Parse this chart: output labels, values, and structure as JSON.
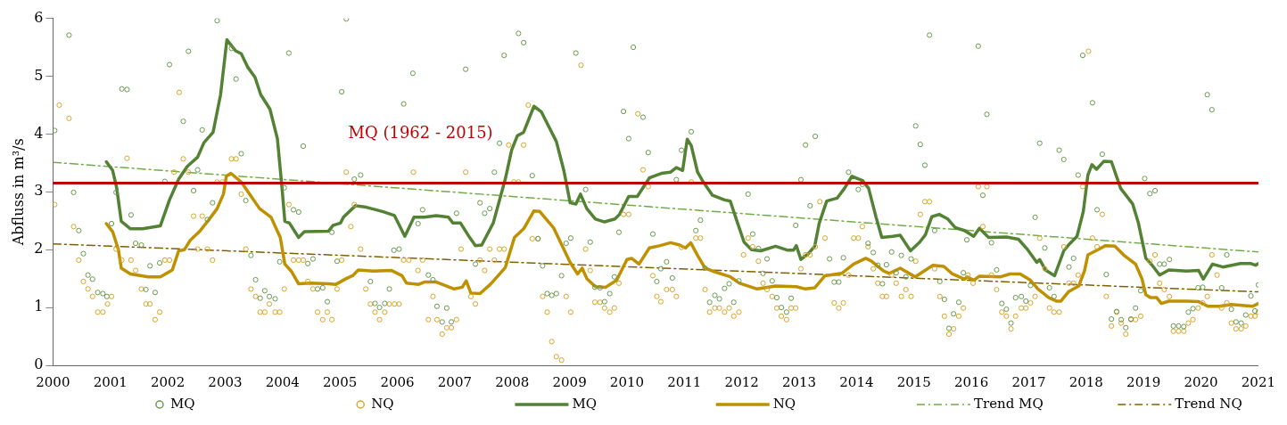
{
  "chart_data": {
    "type": "line",
    "ylabel": "Abfluss in m³/s",
    "xlim": [
      2000,
      2021
    ],
    "xticks": [
      2000,
      2001,
      2002,
      2003,
      2004,
      2005,
      2006,
      2007,
      2008,
      2009,
      2010,
      2011,
      2012,
      2013,
      2014,
      2015,
      2016,
      2017,
      2018,
      2019,
      2020,
      2021
    ],
    "ylim": [
      0,
      6
    ],
    "yticks": [
      0,
      1,
      2,
      3,
      4,
      5,
      6
    ],
    "grid": false,
    "legend": "bottom",
    "ref_lines": [
      {
        "axis": "y",
        "value": 3.15,
        "label": "MQ (1962 - 2015)",
        "color": "#c00000"
      }
    ],
    "series": [
      {
        "name": "MQ",
        "type": "scatter",
        "marker": "circle",
        "color": "#6a9a50",
        "x": [
          2000.03,
          2000.28,
          2000.36,
          2000.45,
          2000.53,
          2000.61,
          2000.69,
          2000.78,
          2000.87,
          2000.94,
          2001.02,
          2001.1,
          2001.2,
          2001.29,
          2001.36,
          2001.44,
          2001.54,
          2001.62,
          2001.69,
          2001.78,
          2001.86,
          2001.95,
          2002.03,
          2002.27,
          2002.36,
          2002.45,
          2002.52,
          2002.6,
          2002.69,
          2002.78,
          2002.86,
          2003.11,
          2003.19,
          2003.28,
          2003.36,
          2003.45,
          2003.53,
          2003.61,
          2003.69,
          2003.77,
          2003.87,
          2003.95,
          2004.03,
          2004.11,
          2004.19,
          2004.28,
          2004.36,
          2004.44,
          2004.53,
          2004.61,
          2004.7,
          2004.78,
          2004.86,
          2004.95,
          2005.03,
          2005.11,
          2005.25,
          2005.36,
          2005.53,
          2005.61,
          2005.69,
          2005.78,
          2005.86,
          2005.94,
          2006.03,
          2006.11,
          2006.27,
          2006.36,
          2006.44,
          2006.54,
          2006.62,
          2006.69,
          2006.78,
          2006.86,
          2006.94,
          2007.03,
          2007.19,
          2007.36,
          2007.44,
          2007.52,
          2007.61,
          2007.69,
          2007.78,
          2007.86,
          2008.11,
          2008.2,
          2008.35,
          2008.45,
          2008.53,
          2008.61,
          2008.69,
          2008.77,
          2008.86,
          2008.94,
          2009.02,
          2009.11,
          2009.28,
          2009.36,
          2009.44,
          2009.53,
          2009.61,
          2009.7,
          2009.78,
          2009.86,
          2009.94,
          2010.03,
          2010.11,
          2010.28,
          2010.37,
          2010.45,
          2010.52,
          2010.59,
          2010.69,
          2010.79,
          2010.86,
          2010.95,
          2011.12,
          2011.2,
          2011.28,
          2011.36,
          2011.44,
          2011.53,
          2011.61,
          2011.7,
          2011.78,
          2011.86,
          2011.95,
          2012.11,
          2012.19,
          2012.29,
          2012.37,
          2012.44,
          2012.53,
          2012.61,
          2012.69,
          2012.78,
          2012.86,
          2012.94,
          2013.03,
          2013.11,
          2013.19,
          2013.28,
          2013.53,
          2013.61,
          2013.69,
          2013.77,
          2013.86,
          2014.03,
          2014.1,
          2014.2,
          2014.29,
          2014.37,
          2014.45,
          2014.52,
          2014.61,
          2014.69,
          2014.78,
          2014.86,
          2014.95,
          2015.03,
          2015.11,
          2015.19,
          2015.27,
          2015.36,
          2015.45,
          2015.53,
          2015.61,
          2015.69,
          2015.78,
          2015.86,
          2015.92,
          2016.12,
          2016.2,
          2016.27,
          2016.35,
          2016.44,
          2016.53,
          2016.61,
          2016.69,
          2016.77,
          2016.87,
          2016.95,
          2017.03,
          2017.11,
          2017.19,
          2017.28,
          2017.36,
          2017.44,
          2017.53,
          2017.61,
          2017.7,
          2017.78,
          2017.86,
          2017.94,
          2018.11,
          2018.19,
          2018.28,
          2018.35,
          2018.44,
          2018.53,
          2018.61,
          2018.69,
          2018.78,
          2018.86,
          2018.95,
          2019.02,
          2019.11,
          2019.2,
          2019.28,
          2019.36,
          2019.45,
          2019.52,
          2019.61,
          2019.7,
          2019.78,
          2019.86,
          2019.95,
          2020.03,
          2020.11,
          2020.19,
          2020.36,
          2020.45,
          2020.53,
          2020.61,
          2020.7,
          2020.78,
          2020.87,
          2020.94,
          2021.0
        ],
        "values": [
          4.06,
          5.71,
          2.99,
          2.33,
          1.93,
          1.56,
          1.49,
          1.26,
          1.24,
          1.19,
          2.45,
          2.99,
          4.78,
          4.77,
          2.6,
          2.11,
          2.08,
          1.31,
          1.72,
          1.26,
          1.77,
          3.18,
          5.2,
          4.22,
          5.43,
          3.02,
          3.38,
          4.07,
          2.52,
          2.81,
          5.96,
          5.48,
          4.95,
          3.66,
          2.85,
          1.9,
          1.48,
          1.16,
          1.29,
          1.19,
          1.15,
          1.79,
          3.07,
          5.4,
          2.69,
          2.65,
          3.79,
          1.76,
          1.84,
          1.32,
          1.34,
          1.1,
          2.3,
          1.8,
          4.73,
          5.99,
          3.22,
          3.29,
          1.45,
          1.07,
          1.0,
          1.07,
          1.32,
          1.99,
          2.01,
          4.52,
          5.05,
          2.45,
          2.69,
          1.56,
          1.48,
          1.02,
          0.75,
          0.99,
          0.75,
          2.63,
          5.12,
          1.75,
          2.81,
          2.63,
          2.71,
          3.34,
          3.84,
          5.36,
          5.74,
          5.58,
          3.28,
          2.19,
          1.72,
          1.24,
          1.21,
          1.24,
          1.55,
          2.11,
          2.2,
          5.4,
          3.04,
          2.13,
          1.35,
          1.34,
          1.1,
          1.24,
          1.53,
          2.3,
          4.39,
          3.92,
          5.5,
          4.29,
          3.68,
          2.27,
          1.45,
          1.67,
          1.79,
          1.51,
          3.21,
          3.72,
          4.04,
          2.33,
          2.51,
          1.68,
          1.09,
          1.21,
          1.15,
          1.33,
          1.41,
          1.09,
          1.46,
          2.96,
          2.27,
          2.02,
          1.59,
          1.84,
          1.46,
          1.17,
          1.0,
          0.92,
          1.16,
          2.42,
          3.21,
          3.81,
          2.76,
          3.96,
          1.84,
          1.44,
          1.44,
          1.86,
          3.34,
          3.04,
          3.13,
          2.11,
          1.95,
          1.73,
          1.41,
          1.74,
          1.96,
          1.6,
          1.9,
          1.53,
          1.84,
          4.14,
          3.82,
          3.46,
          5.71,
          2.33,
          1.45,
          1.14,
          0.64,
          0.89,
          1.09,
          1.6,
          2.17,
          5.52,
          2.94,
          4.34,
          2.12,
          1.65,
          1.07,
          0.97,
          0.73,
          1.17,
          1.19,
          1.11,
          1.38,
          2.56,
          3.84,
          2.03,
          1.34,
          1.19,
          3.72,
          3.56,
          1.7,
          1.85,
          3.29,
          5.36,
          4.54,
          2.69,
          3.65,
          1.57,
          0.8,
          0.93,
          0.79,
          0.65,
          0.8,
          0.99,
          1.29,
          3.23,
          2.97,
          3.02,
          1.75,
          1.75,
          1.83,
          0.68,
          0.68,
          0.67,
          0.92,
          0.98,
          1.34,
          1.35,
          4.68,
          4.42,
          1.34,
          1.91,
          0.97,
          0.75,
          0.73,
          0.87,
          1.2,
          0.94,
          1.39
        ]
      },
      {
        "name": "NQ",
        "type": "scatter",
        "marker": "circle",
        "color": "#d9a62a",
        "x": [
          2000.03,
          2000.11,
          2000.28,
          2000.36,
          2000.45,
          2000.53,
          2000.61,
          2000.69,
          2000.78,
          2000.87,
          2000.95,
          2001.02,
          2001.1,
          2001.2,
          2001.29,
          2001.36,
          2001.44,
          2001.54,
          2001.62,
          2001.69,
          2001.78,
          2001.86,
          2001.95,
          2002.03,
          2002.11,
          2002.2,
          2002.27,
          2002.36,
          2002.45,
          2002.52,
          2002.6,
          2002.69,
          2002.78,
          2002.86,
          2002.95,
          2003.11,
          2003.19,
          2003.28,
          2003.36,
          2003.45,
          2003.53,
          2003.61,
          2003.69,
          2003.77,
          2003.87,
          2003.95,
          2004.03,
          2004.11,
          2004.19,
          2004.28,
          2004.36,
          2004.44,
          2004.53,
          2004.61,
          2004.7,
          2004.78,
          2004.86,
          2004.95,
          2005.03,
          2005.11,
          2005.19,
          2005.25,
          2005.36,
          2005.45,
          2005.53,
          2005.61,
          2005.69,
          2005.78,
          2005.86,
          2005.95,
          2006.03,
          2006.11,
          2006.2,
          2006.28,
          2006.36,
          2006.44,
          2006.54,
          2006.62,
          2006.69,
          2006.78,
          2006.86,
          2006.94,
          2007.03,
          2007.11,
          2007.19,
          2007.28,
          2007.36,
          2007.44,
          2007.52,
          2007.61,
          2007.69,
          2007.78,
          2007.86,
          2007.94,
          2008.03,
          2008.11,
          2008.2,
          2008.28,
          2008.35,
          2008.45,
          2008.53,
          2008.61,
          2008.69,
          2008.77,
          2008.86,
          2008.94,
          2009.02,
          2009.2,
          2009.28,
          2009.36,
          2009.44,
          2009.53,
          2009.61,
          2009.7,
          2009.78,
          2009.86,
          2009.94,
          2010.03,
          2010.19,
          2010.28,
          2010.37,
          2010.45,
          2010.52,
          2010.59,
          2010.69,
          2010.79,
          2010.86,
          2010.95,
          2011.12,
          2011.2,
          2011.28,
          2011.36,
          2011.44,
          2011.53,
          2011.61,
          2011.7,
          2011.78,
          2011.86,
          2011.95,
          2012.03,
          2012.11,
          2012.19,
          2012.29,
          2012.37,
          2012.44,
          2012.53,
          2012.61,
          2012.69,
          2012.78,
          2012.86,
          2012.94,
          2013.03,
          2013.11,
          2013.19,
          2013.28,
          2013.36,
          2013.45,
          2013.61,
          2013.69,
          2013.77,
          2013.86,
          2013.95,
          2014.03,
          2014.1,
          2014.2,
          2014.29,
          2014.37,
          2014.45,
          2014.52,
          2014.61,
          2014.69,
          2014.78,
          2014.86,
          2014.95,
          2015.03,
          2015.11,
          2015.19,
          2015.27,
          2015.36,
          2015.45,
          2015.53,
          2015.61,
          2015.69,
          2015.78,
          2015.86,
          2015.94,
          2016.03,
          2016.12,
          2016.2,
          2016.27,
          2016.35,
          2016.44,
          2016.53,
          2016.61,
          2016.69,
          2016.77,
          2016.87,
          2016.95,
          2017.03,
          2017.11,
          2017.19,
          2017.28,
          2017.36,
          2017.44,
          2017.53,
          2017.61,
          2017.7,
          2017.78,
          2017.86,
          2017.94,
          2018.04,
          2018.11,
          2018.19,
          2018.28,
          2018.35,
          2018.44,
          2018.53,
          2018.61,
          2018.69,
          2018.78,
          2018.86,
          2018.95,
          2019.11,
          2019.2,
          2019.28,
          2019.36,
          2019.45,
          2019.52,
          2019.61,
          2019.7,
          2019.78,
          2019.86,
          2019.95,
          2020.03,
          2020.11,
          2020.19,
          2020.28,
          2020.36,
          2020.45,
          2020.53,
          2020.61,
          2020.7,
          2020.78,
          2020.87,
          2020.94,
          2021.0
        ],
        "values": [
          2.78,
          4.5,
          4.27,
          2.4,
          1.82,
          1.45,
          1.32,
          1.19,
          0.92,
          0.92,
          1.06,
          1.19,
          2.01,
          1.82,
          3.58,
          1.82,
          1.64,
          1.32,
          1.06,
          1.06,
          0.79,
          0.92,
          1.82,
          1.82,
          3.34,
          4.72,
          3.57,
          3.34,
          2.58,
          2.01,
          2.58,
          2.01,
          1.82,
          3.17,
          3.17,
          3.57,
          3.57,
          2.96,
          2.01,
          1.32,
          1.19,
          0.92,
          0.92,
          1.06,
          0.92,
          0.92,
          1.32,
          2.78,
          1.82,
          1.82,
          1.82,
          1.45,
          1.32,
          0.92,
          0.79,
          0.92,
          0.79,
          1.32,
          1.82,
          3.34,
          2.4,
          2.78,
          2.01,
          1.32,
          1.06,
          0.92,
          0.79,
          0.92,
          1.06,
          1.06,
          1.06,
          1.82,
          1.82,
          3.34,
          1.64,
          1.82,
          0.79,
          1.19,
          0.79,
          0.54,
          0.65,
          0.65,
          0.79,
          2.01,
          3.34,
          1.19,
          1.06,
          1.82,
          1.64,
          2.01,
          1.82,
          2.01,
          2.01,
          3.81,
          3.17,
          3.17,
          3.81,
          4.5,
          2.19,
          2.19,
          1.19,
          0.92,
          0.41,
          0.15,
          0.09,
          1.19,
          0.92,
          5.19,
          2.01,
          1.64,
          1.09,
          1.09,
          0.99,
          0.92,
          0.99,
          1.42,
          2.61,
          2.61,
          4.35,
          3.38,
          3.09,
          1.55,
          1.19,
          1.1,
          1.31,
          1.31,
          1.19,
          2.04,
          3.17,
          2.2,
          2.2,
          1.31,
          0.92,
          0.99,
          0.99,
          0.92,
          0.99,
          0.85,
          0.92,
          1.91,
          2.2,
          2.05,
          1.8,
          1.42,
          1.31,
          1.19,
          0.99,
          0.85,
          0.79,
          0.99,
          0.99,
          1.67,
          1.91,
          1.91,
          2.05,
          2.83,
          2.2,
          1.08,
          0.99,
          1.08,
          1.56,
          2.2,
          2.2,
          2.4,
          2.05,
          1.67,
          1.42,
          1.19,
          1.19,
          1.56,
          1.42,
          1.19,
          1.31,
          1.19,
          1.8,
          2.61,
          2.83,
          2.83,
          1.67,
          1.19,
          0.85,
          0.54,
          0.63,
          0.85,
          0.99,
          1.56,
          1.42,
          3.09,
          2.4,
          3.09,
          1.56,
          1.31,
          0.92,
          0.85,
          0.63,
          0.85,
          0.99,
          0.99,
          1.08,
          1.19,
          2.2,
          1.67,
          0.99,
          0.92,
          0.92,
          2.05,
          1.42,
          1.42,
          1.56,
          3.09,
          5.43,
          2.2,
          2.05,
          2.61,
          1.19,
          0.68,
          0.92,
          0.73,
          0.54,
          0.79,
          0.79,
          0.85,
          1.8,
          1.91,
          1.42,
          1.31,
          1.19,
          0.59,
          0.59,
          0.59,
          0.73,
          0.79,
          0.99,
          1.08,
          1.19,
          1.91,
          1.56,
          0.99,
          1.08,
          0.73,
          0.63,
          0.63,
          0.68,
          0.85,
          0.85,
          0.92
        ]
      },
      {
        "name": "MQ",
        "type": "line",
        "marker": "none",
        "line_style": "solid",
        "color": "#548235",
        "x": [
          2000.93,
          2001.04,
          2001.11,
          2001.19,
          2001.35,
          2001.56,
          2001.87,
          2002.03,
          2002.19,
          2002.34,
          2002.52,
          2002.63,
          2002.79,
          2002.92,
          2003.03,
          2003.18,
          2003.28,
          2003.39,
          2003.52,
          2003.62,
          2003.78,
          2003.91,
          2003.99,
          2004.04,
          2004.12,
          2004.28,
          2004.38,
          2004.8,
          2004.88,
          2005.01,
          2005.06,
          2005.27,
          2005.43,
          2005.74,
          2005.95,
          2006.13,
          2006.29,
          2006.47,
          2006.68,
          2006.89,
          2006.97,
          2007.1,
          2007.26,
          2007.36,
          2007.47,
          2007.67,
          2007.88,
          2007.99,
          2008.09,
          2008.2,
          2008.38,
          2008.51,
          2008.77,
          2008.9,
          2009.01,
          2009.11,
          2009.19,
          2009.3,
          2009.45,
          2009.61,
          2009.79,
          2009.87,
          2010.03,
          2010.18,
          2010.39,
          2010.6,
          2010.76,
          2010.86,
          2010.97,
          2011.05,
          2011.12,
          2011.23,
          2011.33,
          2011.49,
          2011.7,
          2011.8,
          2011.91,
          2012.04,
          2012.17,
          2012.33,
          2012.59,
          2012.8,
          2012.9,
          2012.95,
          2013.03,
          2013.16,
          2013.27,
          2013.35,
          2013.48,
          2013.66,
          2013.79,
          2013.92,
          2014.11,
          2014.21,
          2014.34,
          2014.44,
          2014.63,
          2014.76,
          2014.94,
          2015.1,
          2015.2,
          2015.31,
          2015.44,
          2015.59,
          2015.72,
          2015.88,
          2016.04,
          2016.14,
          2016.3,
          2016.61,
          2016.82,
          2016.98,
          2017.14,
          2017.19,
          2017.29,
          2017.45,
          2017.61,
          2017.71,
          2017.84,
          2017.95,
          2018.03,
          2018.1,
          2018.18,
          2018.31,
          2018.44,
          2018.6,
          2018.81,
          2018.91,
          2019.04,
          2019.15,
          2019.28,
          2019.44,
          2019.75,
          2019.96,
          2020.04,
          2020.2,
          2020.38,
          2020.69,
          2020.87,
          2020.95,
          2021.0
        ],
        "values": [
          3.52,
          3.37,
          3.07,
          2.49,
          2.36,
          2.36,
          2.41,
          2.86,
          3.22,
          3.44,
          3.6,
          3.85,
          4.03,
          4.68,
          5.63,
          5.44,
          5.39,
          5.16,
          4.98,
          4.68,
          4.43,
          3.92,
          3.07,
          2.49,
          2.46,
          2.21,
          2.31,
          2.32,
          2.42,
          2.46,
          2.56,
          2.76,
          2.74,
          2.66,
          2.59,
          2.23,
          2.56,
          2.56,
          2.59,
          2.56,
          2.46,
          2.46,
          2.21,
          2.07,
          2.08,
          2.46,
          3.22,
          3.72,
          3.97,
          4.03,
          4.48,
          4.38,
          3.87,
          3.37,
          2.81,
          2.79,
          2.96,
          2.71,
          2.53,
          2.48,
          2.53,
          2.61,
          2.92,
          2.92,
          3.24,
          3.32,
          3.34,
          3.42,
          3.37,
          3.91,
          3.8,
          3.34,
          3.17,
          2.94,
          2.86,
          2.84,
          2.51,
          2.13,
          2.0,
          1.98,
          2.06,
          1.99,
          1.99,
          2.07,
          1.83,
          1.93,
          2.06,
          2.46,
          2.84,
          2.89,
          3.06,
          3.27,
          3.19,
          3.06,
          2.56,
          2.21,
          2.23,
          2.25,
          1.98,
          2.13,
          2.26,
          2.57,
          2.61,
          2.53,
          2.38,
          2.33,
          2.23,
          2.37,
          2.21,
          2.22,
          2.18,
          2.0,
          1.78,
          1.83,
          1.65,
          1.55,
          1.98,
          2.1,
          2.23,
          2.66,
          3.29,
          3.47,
          3.39,
          3.53,
          3.52,
          3.06,
          2.79,
          2.46,
          1.85,
          1.73,
          1.56,
          1.65,
          1.63,
          1.64,
          1.49,
          1.75,
          1.7,
          1.76,
          1.76,
          1.73,
          1.76
        ]
      },
      {
        "name": "NQ",
        "type": "line",
        "marker": "none",
        "line_style": "solid",
        "color": "#bf9000",
        "x": [
          2000.93,
          2001.04,
          2001.14,
          2001.19,
          2001.35,
          2001.66,
          2001.87,
          2002.08,
          2002.19,
          2002.29,
          2002.39,
          2002.55,
          2002.71,
          2002.86,
          2002.97,
          2003.02,
          2003.1,
          2003.28,
          2003.44,
          2003.6,
          2003.8,
          2003.96,
          2004.04,
          2004.15,
          2004.28,
          2004.49,
          2004.8,
          2004.93,
          2005.11,
          2005.22,
          2005.32,
          2005.58,
          2005.9,
          2006.08,
          2006.16,
          2006.37,
          2006.47,
          2006.68,
          2006.99,
          2007.13,
          2007.2,
          2007.28,
          2007.44,
          2007.62,
          2007.88,
          2008.04,
          2008.2,
          2008.38,
          2008.48,
          2008.72,
          2009.01,
          2009.14,
          2009.22,
          2009.3,
          2009.45,
          2009.63,
          2009.82,
          2010.0,
          2010.08,
          2010.21,
          2010.39,
          2010.58,
          2010.76,
          2010.92,
          2011.02,
          2011.11,
          2011.23,
          2011.36,
          2011.49,
          2011.8,
          2011.96,
          2012.27,
          2012.59,
          2012.95,
          2013.11,
          2013.27,
          2013.45,
          2013.74,
          2013.95,
          2014.16,
          2014.26,
          2014.47,
          2014.57,
          2014.76,
          2015.02,
          2015.33,
          2015.52,
          2015.67,
          2015.88,
          2015.93,
          2016.04,
          2016.14,
          2016.51,
          2016.67,
          2016.85,
          2017.03,
          2017.16,
          2017.35,
          2017.48,
          2017.56,
          2017.69,
          2017.87,
          2017.97,
          2018.03,
          2018.13,
          2018.34,
          2018.5,
          2018.65,
          2018.86,
          2018.97,
          2019.04,
          2019.12,
          2019.23,
          2019.31,
          2019.44,
          2019.75,
          2019.96,
          2020.12,
          2020.32,
          2020.53,
          2020.9,
          2021.0
        ],
        "values": [
          2.45,
          2.31,
          2.0,
          1.68,
          1.58,
          1.53,
          1.53,
          1.65,
          1.98,
          2.0,
          2.16,
          2.31,
          2.51,
          2.71,
          2.96,
          3.27,
          3.32,
          3.17,
          2.94,
          2.71,
          2.56,
          2.21,
          1.75,
          1.63,
          1.41,
          1.42,
          1.41,
          1.4,
          1.5,
          1.55,
          1.65,
          1.63,
          1.64,
          1.55,
          1.42,
          1.4,
          1.44,
          1.44,
          1.32,
          1.35,
          1.46,
          1.25,
          1.24,
          1.4,
          1.69,
          2.21,
          2.36,
          2.67,
          2.66,
          2.38,
          1.78,
          1.58,
          1.68,
          1.5,
          1.36,
          1.35,
          1.47,
          1.83,
          1.85,
          1.75,
          2.03,
          2.07,
          2.12,
          2.08,
          2.03,
          2.12,
          1.9,
          1.68,
          1.63,
          1.53,
          1.42,
          1.32,
          1.37,
          1.36,
          1.32,
          1.34,
          1.55,
          1.59,
          1.75,
          1.85,
          1.8,
          1.63,
          1.59,
          1.68,
          1.53,
          1.73,
          1.71,
          1.58,
          1.49,
          1.53,
          1.47,
          1.54,
          1.53,
          1.58,
          1.58,
          1.47,
          1.32,
          1.17,
          1.11,
          1.11,
          1.27,
          1.37,
          1.63,
          1.91,
          1.96,
          2.07,
          2.06,
          1.91,
          1.75,
          1.5,
          1.22,
          1.17,
          1.17,
          1.07,
          1.11,
          1.11,
          1.1,
          1.02,
          1.02,
          1.05,
          1.02,
          1.07
        ]
      },
      {
        "name": "Trend MQ",
        "type": "line",
        "marker": "none",
        "line_style": "dashed",
        "color": "#70ad47",
        "x": [
          2000,
          2021
        ],
        "values": [
          3.51,
          1.96
        ]
      },
      {
        "name": "Trend NQ",
        "type": "line",
        "marker": "none",
        "line_style": "dashed",
        "color": "#806000",
        "x": [
          2000,
          2021
        ],
        "values": [
          2.1,
          1.27
        ]
      }
    ]
  }
}
